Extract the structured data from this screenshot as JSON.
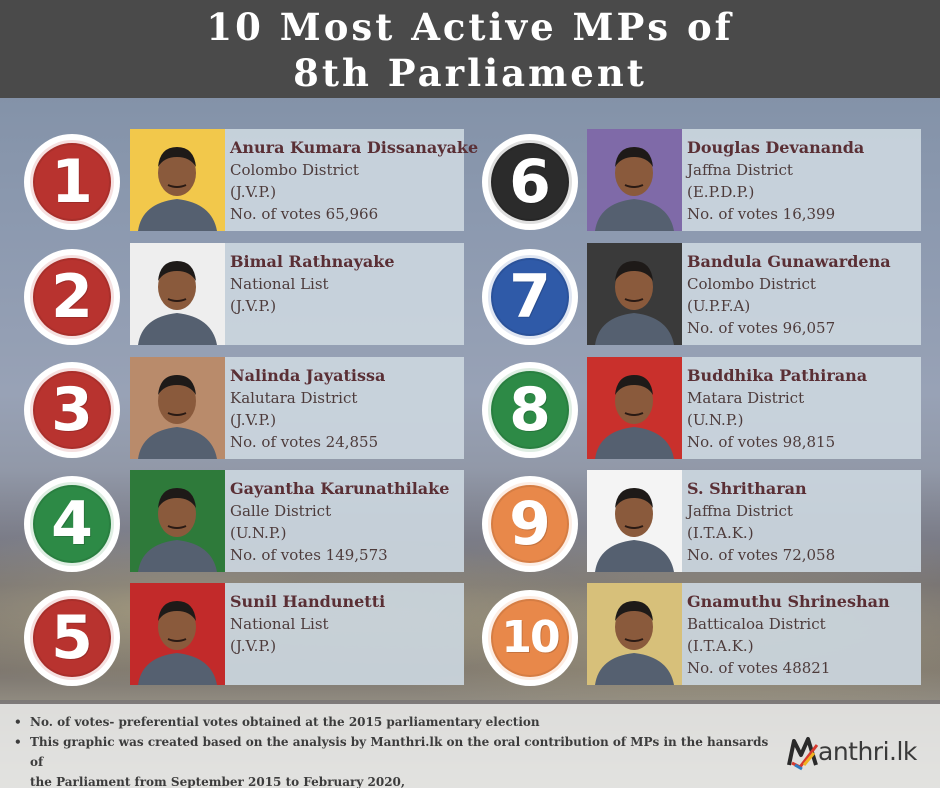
{
  "title": {
    "line1": "10 Most Active MPs of",
    "line2": "8th Parliament"
  },
  "mps": [
    {
      "rank": "1",
      "name": "Anura Kumara Dissanayake",
      "district": "Colombo District",
      "party": "(J.V.P.)",
      "votes": "No. of votes 65,966",
      "color": "#b8332f",
      "photo_bg": "#f2c84b"
    },
    {
      "rank": "2",
      "name": "Bimal Rathnayake",
      "district": "National List",
      "party": "(J.V.P.)",
      "votes": "",
      "color": "#b8332f",
      "photo_bg": "#eeeeee"
    },
    {
      "rank": "3",
      "name": "Nalinda Jayatissa",
      "district": "Kalutara District",
      "party": "(J.V.P.)",
      "votes": "No. of  votes 24,855",
      "color": "#b8332f",
      "photo_bg": "#b98b6b"
    },
    {
      "rank": "4",
      "name": "Gayantha Karunathilake",
      "district": "Galle District",
      "party": "(U.N.P.)",
      "votes": "No. of votes 149,573",
      "color": "#2d8a46",
      "photo_bg": "#2e7a3a"
    },
    {
      "rank": "5",
      "name": "Sunil Handunetti",
      "district": "National List",
      "party": "(J.V.P.)",
      "votes": "",
      "color": "#b8332f",
      "photo_bg": "#c22a2a"
    },
    {
      "rank": "6",
      "name": "Douglas Devananda",
      "district": "Jaffna District",
      "party": "(E.P.D.P.)",
      "votes": "No. of votes 16,399",
      "color": "#2b2b2b",
      "photo_bg": "#7f6aa8"
    },
    {
      "rank": "7",
      "name": "Bandula Gunawardena",
      "district": "Colombo District",
      "party": "(U.P.F.A)",
      "votes": "No. of votes 96,057",
      "color": "#2f5aa8",
      "photo_bg": "#3a3a3a"
    },
    {
      "rank": "8",
      "name": "Buddhika Pathirana",
      "district": "Matara District",
      "party": "(U.N.P.)",
      "votes": "No. of votes 98,815",
      "color": "#2d8a46",
      "photo_bg": "#c9302c"
    },
    {
      "rank": "9",
      "name": "S. Shritharan",
      "district": "Jaffna District",
      "party": "(I.T.A.K.)",
      "votes": "No. of votes 72,058",
      "color": "#e8884a",
      "photo_bg": "#f4f4f4"
    },
    {
      "rank": "10",
      "name": "Gnamuthu Shrineshan",
      "district": "Batticaloa District",
      "party": "(I.T.A.K.)",
      "votes": "No. of votes 48821",
      "color": "#e8884a",
      "photo_bg": "#d7c07a"
    }
  ],
  "footer": {
    "note1": "No. of votes- preferential votes obtained at the 2015 parliamentary  election",
    "note2": "This graphic was created based on the analysis by Manthri.lk on the oral contribution of MPs in the hansards of",
    "note3": "the Parliament from September 2015  to February 2020,"
  },
  "logo": {
    "text": "anthri.lk",
    "icon": "manthri-m-logo-icon"
  }
}
